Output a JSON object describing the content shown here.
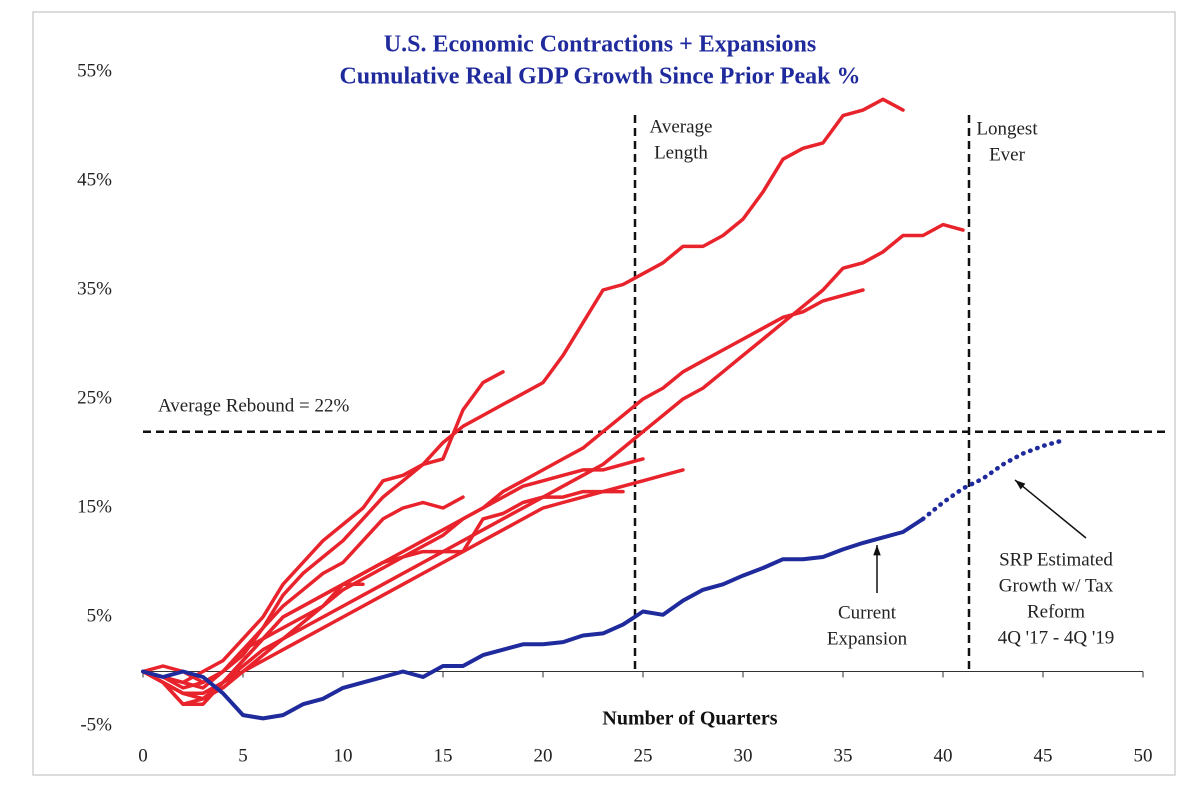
{
  "chart_data": {
    "type": "line",
    "title": "U.S. Economic Contractions + Expansions",
    "subtitle": "Cumulative Real GDP Growth Since Prior Peak %",
    "x_label": "Number of Quarters",
    "x": [
      0,
      1,
      2,
      3,
      4,
      5,
      6,
      7,
      8,
      9,
      10,
      11,
      12,
      13,
      14,
      15,
      16,
      17,
      18,
      19,
      20,
      21,
      22,
      23,
      24,
      25,
      26,
      27,
      28,
      29,
      30,
      31,
      32,
      33,
      34,
      35,
      36,
      37,
      38,
      39,
      40,
      41,
      42,
      43,
      44,
      45,
      46
    ],
    "xlim": [
      0,
      50
    ],
    "xticks": [
      0,
      5,
      10,
      15,
      20,
      25,
      30,
      35,
      40,
      45,
      50
    ],
    "ylim": [
      -5,
      55
    ],
    "yticks": [
      {
        "value": -5,
        "label": "-5%"
      },
      {
        "value": 5,
        "label": "5%"
      },
      {
        "value": 15,
        "label": "15%"
      },
      {
        "value": 25,
        "label": "25%"
      },
      {
        "value": 35,
        "label": "35%"
      },
      {
        "value": 45,
        "label": "45%"
      },
      {
        "value": 55,
        "label": "55%"
      }
    ],
    "grid": false,
    "series": [
      {
        "color": "#e8232b",
        "values": [
          0,
          -0.5,
          -1,
          -1.5,
          0,
          1.5,
          4,
          7,
          9,
          10.5,
          12,
          14,
          16,
          17.5,
          19,
          21,
          22.5,
          23.5,
          24.5,
          25.5,
          26.5,
          29,
          32,
          35,
          35.5,
          36.5,
          37.5,
          39,
          39,
          40,
          41.5,
          44,
          47,
          48,
          48.5,
          51,
          51.5,
          52.5,
          51.5,
          null,
          null,
          null,
          null,
          null,
          null,
          null,
          null
        ]
      },
      {
        "color": "#e8232b",
        "values": [
          0,
          -1,
          -2,
          -2.5,
          -1,
          0.5,
          2,
          3,
          4,
          5,
          6,
          7,
          8,
          9,
          10,
          11,
          12,
          13,
          14,
          15,
          16,
          17,
          18,
          19,
          20.5,
          22,
          23.5,
          25,
          26,
          27.5,
          29,
          30.5,
          32,
          33.5,
          35,
          37,
          37.5,
          38.5,
          40,
          40,
          41,
          40.5,
          null,
          null,
          null,
          null,
          null
        ]
      },
      {
        "color": "#e8232b",
        "values": [
          0,
          -1,
          -2,
          -2.5,
          -1,
          1,
          3,
          5,
          6,
          7,
          8,
          9,
          10,
          11,
          12,
          13,
          14,
          15,
          16.5,
          17.5,
          18.5,
          19.5,
          20.5,
          22,
          23.5,
          25,
          26,
          27.5,
          28.5,
          29.5,
          30.5,
          31.5,
          32.5,
          33,
          34,
          34.5,
          35,
          null,
          null,
          null,
          null,
          null,
          null,
          null,
          null,
          null,
          null
        ]
      },
      {
        "color": "#e8232b",
        "values": [
          0,
          -0.5,
          -1,
          0,
          1,
          3,
          5,
          8,
          10,
          12,
          13.5,
          15,
          17.5,
          18,
          19,
          19.5,
          24,
          26.5,
          27.5,
          null,
          null,
          null,
          null,
          null,
          null,
          null,
          null,
          null,
          null,
          null,
          null,
          null,
          null,
          null,
          null,
          null,
          null,
          null,
          null,
          null,
          null,
          null,
          null,
          null,
          null,
          null,
          null
        ]
      },
      {
        "color": "#e8232b",
        "values": [
          0,
          0.5,
          0,
          -1,
          0,
          2,
          4,
          6,
          7.5,
          9,
          10,
          12,
          14,
          15,
          15.5,
          15,
          16,
          null,
          null,
          null,
          null,
          null,
          null,
          null,
          null,
          null,
          null,
          null,
          null,
          null,
          null,
          null,
          null,
          null,
          null,
          null,
          null,
          null,
          null,
          null,
          null,
          null,
          null,
          null,
          null,
          null,
          null
        ]
      },
      {
        "color": "#e8232b",
        "values": [
          0,
          -1,
          -2,
          -2,
          -1,
          0,
          1,
          2,
          3,
          4,
          5,
          6,
          7,
          8,
          9,
          10,
          11,
          12,
          13,
          14,
          15,
          15.5,
          16,
          16.5,
          17,
          17.5,
          18,
          18.5,
          null,
          null,
          null,
          null,
          null,
          null,
          null,
          null,
          null,
          null,
          null,
          null,
          null,
          null,
          null,
          null,
          null,
          null,
          null
        ]
      },
      {
        "color": "#e8232b",
        "values": [
          0,
          -0.5,
          -1.5,
          -1,
          0,
          2,
          3,
          4,
          5,
          6,
          7.5,
          8.5,
          9.5,
          10.5,
          11.5,
          12.5,
          14,
          15,
          16,
          17,
          17.5,
          18,
          18.5,
          18.5,
          19,
          19.5,
          null,
          null,
          null,
          null,
          null,
          null,
          null,
          null,
          null,
          null,
          null,
          null,
          null,
          null,
          null,
          null,
          null,
          null,
          null,
          null,
          null
        ]
      },
      {
        "color": "#e8232b",
        "values": [
          0,
          -1,
          -3,
          -2.5,
          -1.5,
          0,
          1.5,
          3,
          4.5,
          6,
          8,
          9,
          10,
          10.5,
          11,
          11,
          11,
          14,
          14.5,
          15.5,
          16,
          16,
          16.5,
          16.5,
          16.5,
          null,
          null,
          null,
          null,
          null,
          null,
          null,
          null,
          null,
          null,
          null,
          null,
          null,
          null,
          null,
          null,
          null,
          null,
          null,
          null,
          null,
          null
        ]
      },
      {
        "color": "#e8232b",
        "values": [
          0,
          -1,
          -3,
          -3,
          -1,
          1,
          3,
          5,
          6,
          7,
          8,
          8,
          null,
          null,
          null,
          null,
          null,
          null,
          null,
          null,
          null,
          null,
          null,
          null,
          null,
          null,
          null,
          null,
          null,
          null,
          null,
          null,
          null,
          null,
          null,
          null,
          null,
          null,
          null,
          null,
          null,
          null,
          null,
          null,
          null,
          null,
          null
        ]
      },
      {
        "color": "#1f2a9c",
        "values": [
          0,
          -0.5,
          0,
          -0.5,
          -2,
          -4,
          -4.3,
          -4,
          -3,
          -2.5,
          -1.5,
          -1,
          -0.5,
          0,
          -0.5,
          0.5,
          0.5,
          1.5,
          2,
          2.5,
          2.5,
          2.7,
          3.3,
          3.5,
          4.3,
          5.5,
          5.2,
          6.5,
          7.5,
          8,
          8.8,
          9.5,
          10.3,
          10.3,
          10.5,
          11.2,
          11.8,
          12.3,
          12.8,
          14,
          null,
          null,
          null,
          null,
          null,
          null,
          null
        ]
      },
      {
        "color": "#1f2a9c",
        "dashed": true,
        "values": [
          null,
          null,
          null,
          null,
          null,
          null,
          null,
          null,
          null,
          null,
          null,
          null,
          null,
          null,
          null,
          null,
          null,
          null,
          null,
          null,
          null,
          null,
          null,
          null,
          null,
          null,
          null,
          null,
          null,
          null,
          null,
          null,
          null,
          null,
          null,
          null,
          null,
          null,
          null,
          14,
          15.5,
          16.8,
          17.7,
          19,
          20,
          20.7,
          21.2
        ]
      }
    ],
    "reference_lines": [
      {
        "axis": "y",
        "value": 22,
        "lines": [
          "Average Rebound = 22%"
        ]
      },
      {
        "axis": "x",
        "value": 24.6,
        "lines": [
          "Average",
          "Length"
        ]
      },
      {
        "axis": "x",
        "value": 41.3,
        "lines": [
          "Longest",
          "Ever"
        ]
      }
    ],
    "annotations": [
      {
        "lines": [
          "Current",
          "Expansion"
        ]
      },
      {
        "lines": [
          "SRP Estimated",
          "Growth w/ Tax",
          "Reform",
          "4Q '17 - 4Q '19"
        ]
      }
    ]
  }
}
